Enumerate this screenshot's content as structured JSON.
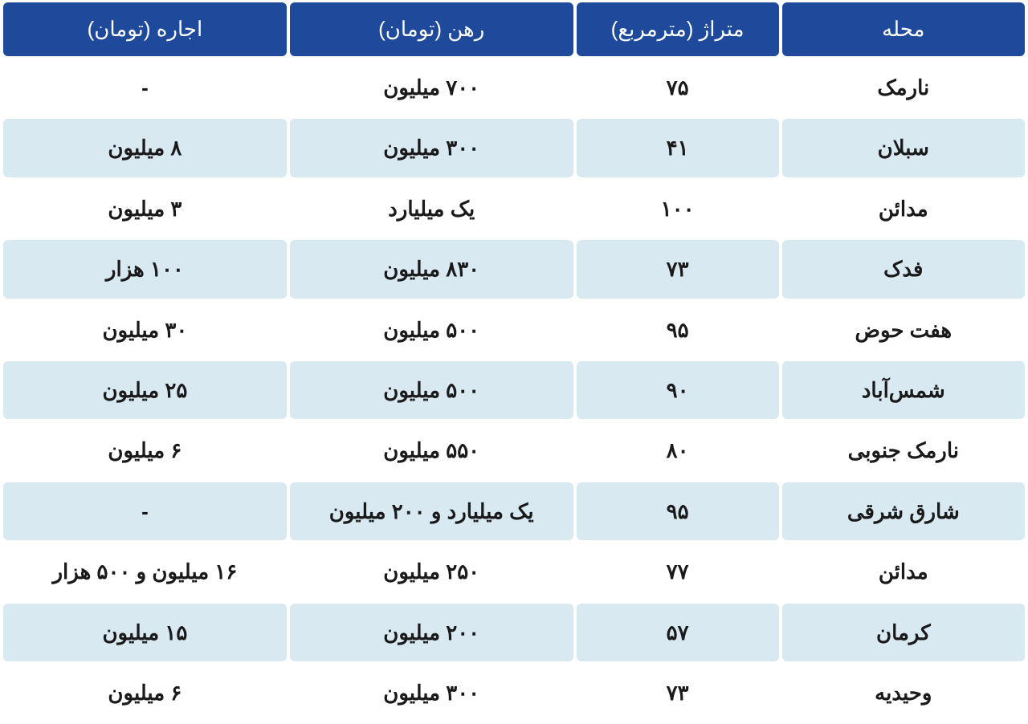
{
  "table": {
    "header_bg": "#1f4a9b",
    "header_fg": "#ffffff",
    "row_bg_odd": "#ffffff",
    "row_bg_even": "#d9e9f2",
    "cell_fg": "#1a1a1a",
    "font_size_header": 26,
    "font_size_cell": 26,
    "columns": [
      {
        "key": "neighborhood",
        "label": "محله"
      },
      {
        "key": "area",
        "label": "متراژ (مترمربع)"
      },
      {
        "key": "deposit",
        "label": "رهن (تومان)"
      },
      {
        "key": "rent",
        "label": "اجاره (تومان)"
      }
    ],
    "rows": [
      {
        "neighborhood": "نارمک",
        "area": "۷۵",
        "deposit": "۷۰۰ میلیون",
        "rent": "-"
      },
      {
        "neighborhood": "سبلان",
        "area": "۴۱",
        "deposit": "۳۰۰ میلیون",
        "rent": "۸ میلیون"
      },
      {
        "neighborhood": "مدائن",
        "area": "۱۰۰",
        "deposit": "یک میلیارد",
        "rent": "۳ میلیون"
      },
      {
        "neighborhood": "فدک",
        "area": "۷۳",
        "deposit": "۸۳۰ میلیون",
        "rent": "۱۰۰ هزار"
      },
      {
        "neighborhood": "هفت حوض",
        "area": "۹۵",
        "deposit": "۵۰۰ میلیون",
        "rent": "۳۰ میلیون"
      },
      {
        "neighborhood": "شمس‌آباد",
        "area": "۹۰",
        "deposit": "۵۰۰ میلیون",
        "rent": "۲۵ میلیون"
      },
      {
        "neighborhood": "نارمک جنوبی",
        "area": "۸۰",
        "deposit": "۵۵۰ میلیون",
        "rent": "۶ میلیون"
      },
      {
        "neighborhood": "شارق شرقی",
        "area": "۹۵",
        "deposit": "یک میلیارد و ۲۰۰ میلیون",
        "rent": "-"
      },
      {
        "neighborhood": "مدائن",
        "area": "۷۷",
        "deposit": "۲۵۰ میلیون",
        "rent": "۱۶ میلیون و ۵۰۰ هزار"
      },
      {
        "neighborhood": "کرمان",
        "area": "۵۷",
        "deposit": "۲۰۰ میلیون",
        "rent": "۱۵ میلیون"
      },
      {
        "neighborhood": "وحیدیه",
        "area": "۷۳",
        "deposit": "۳۰۰ میلیون",
        "rent": "۶ میلیون"
      }
    ]
  }
}
